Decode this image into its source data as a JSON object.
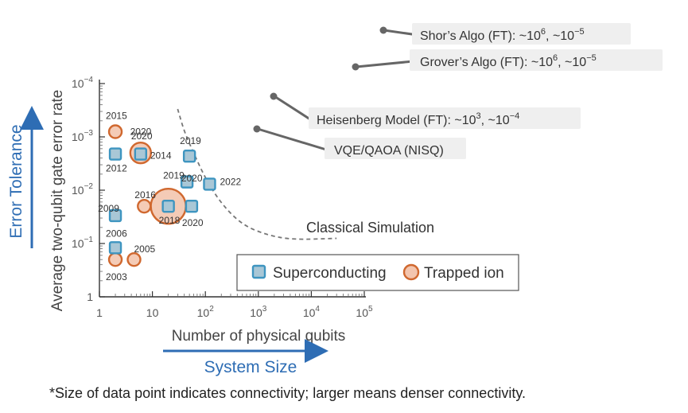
{
  "chart_data": {
    "type": "scatter",
    "xlabel": "Number of physical qubits",
    "ylabel": "Average two-qubit gate error rate",
    "x_scale": "log",
    "y_scale": "log",
    "y_inverted": true,
    "xlim": [
      1,
      100000
    ],
    "ylim": [
      1,
      0.0001
    ],
    "x_ticks": [
      {
        "value": 1,
        "base": "1",
        "exp": ""
      },
      {
        "value": 10,
        "base": "10",
        "exp": ""
      },
      {
        "value": 100,
        "base": "10",
        "exp": "2"
      },
      {
        "value": 1000,
        "base": "10",
        "exp": "3"
      },
      {
        "value": 10000,
        "base": "10",
        "exp": "4"
      },
      {
        "value": 100000,
        "base": "10",
        "exp": "5"
      }
    ],
    "y_ticks": [
      {
        "value": 1,
        "base": "1",
        "exp": ""
      },
      {
        "value": 0.1,
        "base": "10",
        "exp": "−1"
      },
      {
        "value": 0.01,
        "base": "10",
        "exp": "−2"
      },
      {
        "value": 0.001,
        "base": "10",
        "exp": "−3"
      },
      {
        "value": 0.0001,
        "base": "10",
        "exp": "−4"
      }
    ],
    "legend": {
      "placement": "lower-right",
      "items": [
        {
          "label": "Superconducting",
          "color": "#4BA3C7",
          "marker": "square"
        },
        {
          "label": "Trapped ion",
          "color": "#E8855B",
          "marker": "circle"
        }
      ]
    },
    "series": [
      {
        "name": "Superconducting",
        "marker": "square",
        "color": "#4BA3C7",
        "points": [
          {
            "x": 2,
            "y": 0.0021,
            "label": "2012",
            "connectivity": 1
          },
          {
            "x": 2,
            "y": 0.03,
            "label": "",
            "connectivity": 1
          },
          {
            "x": 2,
            "y": 0.12,
            "label": "2006",
            "connectivity": 1
          },
          {
            "x": 6,
            "y": 0.0021,
            "label": "2014",
            "connectivity": 1
          },
          {
            "x": 20,
            "y": 0.02,
            "label": "2018",
            "connectivity": 1
          },
          {
            "x": 50,
            "y": 0.0023,
            "label": "2019",
            "connectivity": 1
          },
          {
            "x": 45,
            "y": 0.007,
            "label": "2019",
            "connectivity": 1
          },
          {
            "x": 55,
            "y": 0.02,
            "label": "2020",
            "connectivity": 1
          },
          {
            "x": 120,
            "y": 0.0077,
            "label": "2022",
            "connectivity": 1
          }
        ]
      },
      {
        "name": "Trapped ion",
        "marker": "circle",
        "color": "#E8855B",
        "points": [
          {
            "x": 2,
            "y": 0.0008,
            "label": "2015",
            "connectivity": 1
          },
          {
            "x": 6,
            "y": 0.002,
            "label": "2020",
            "connectivity": 2
          },
          {
            "x": 7,
            "y": 0.02,
            "label": "2016",
            "connectivity": 1
          },
          {
            "x": 20,
            "y": 0.02,
            "label": "",
            "connectivity": 3
          },
          {
            "x": 2,
            "y": 0.2,
            "label": "2003",
            "connectivity": 1
          },
          {
            "x": 4.5,
            "y": 0.2,
            "label": "2005",
            "connectivity": 1
          }
        ]
      }
    ],
    "extra_labels": [
      {
        "text": "2009",
        "x": 1.75,
        "y": 0.022
      },
      {
        "text": "2020",
        "x": 3.8,
        "y": 0.0008
      },
      {
        "text": "2020",
        "x": 35,
        "y": 0.006
      }
    ],
    "classical_boundary": {
      "label": "Classical Simulation",
      "points": [
        [
          30,
          0.0003
        ],
        [
          40,
          0.0008
        ],
        [
          60,
          0.002
        ],
        [
          100,
          0.006
        ],
        [
          200,
          0.018
        ],
        [
          500,
          0.045
        ],
        [
          1500,
          0.07
        ],
        [
          4500,
          0.085
        ],
        [
          30000,
          0.08
        ]
      ]
    },
    "annotations": [
      {
        "text": "Shor’s Algo (FT): ~10",
        "sup1": "6",
        "mid": ", ~10",
        "sup2": "−5"
      },
      {
        "text": "Grover’s Algo (FT): ~10",
        "sup1": "6",
        "mid": ", ~10",
        "sup2": "−5"
      },
      {
        "text": "Heisenberg Model (FT): ~10",
        "sup1": "3",
        "mid": ", ~10",
        "sup2": "−4"
      },
      {
        "text": "VQE/QAOA (NISQ)",
        "sup1": "",
        "mid": "",
        "sup2": ""
      }
    ],
    "side_labels": {
      "y_arrow": "Error Tolerance",
      "x_arrow": "System Size"
    },
    "footnote": "*Size of data point indicates connectivity; larger means denser connectivity.",
    "grid": false
  }
}
